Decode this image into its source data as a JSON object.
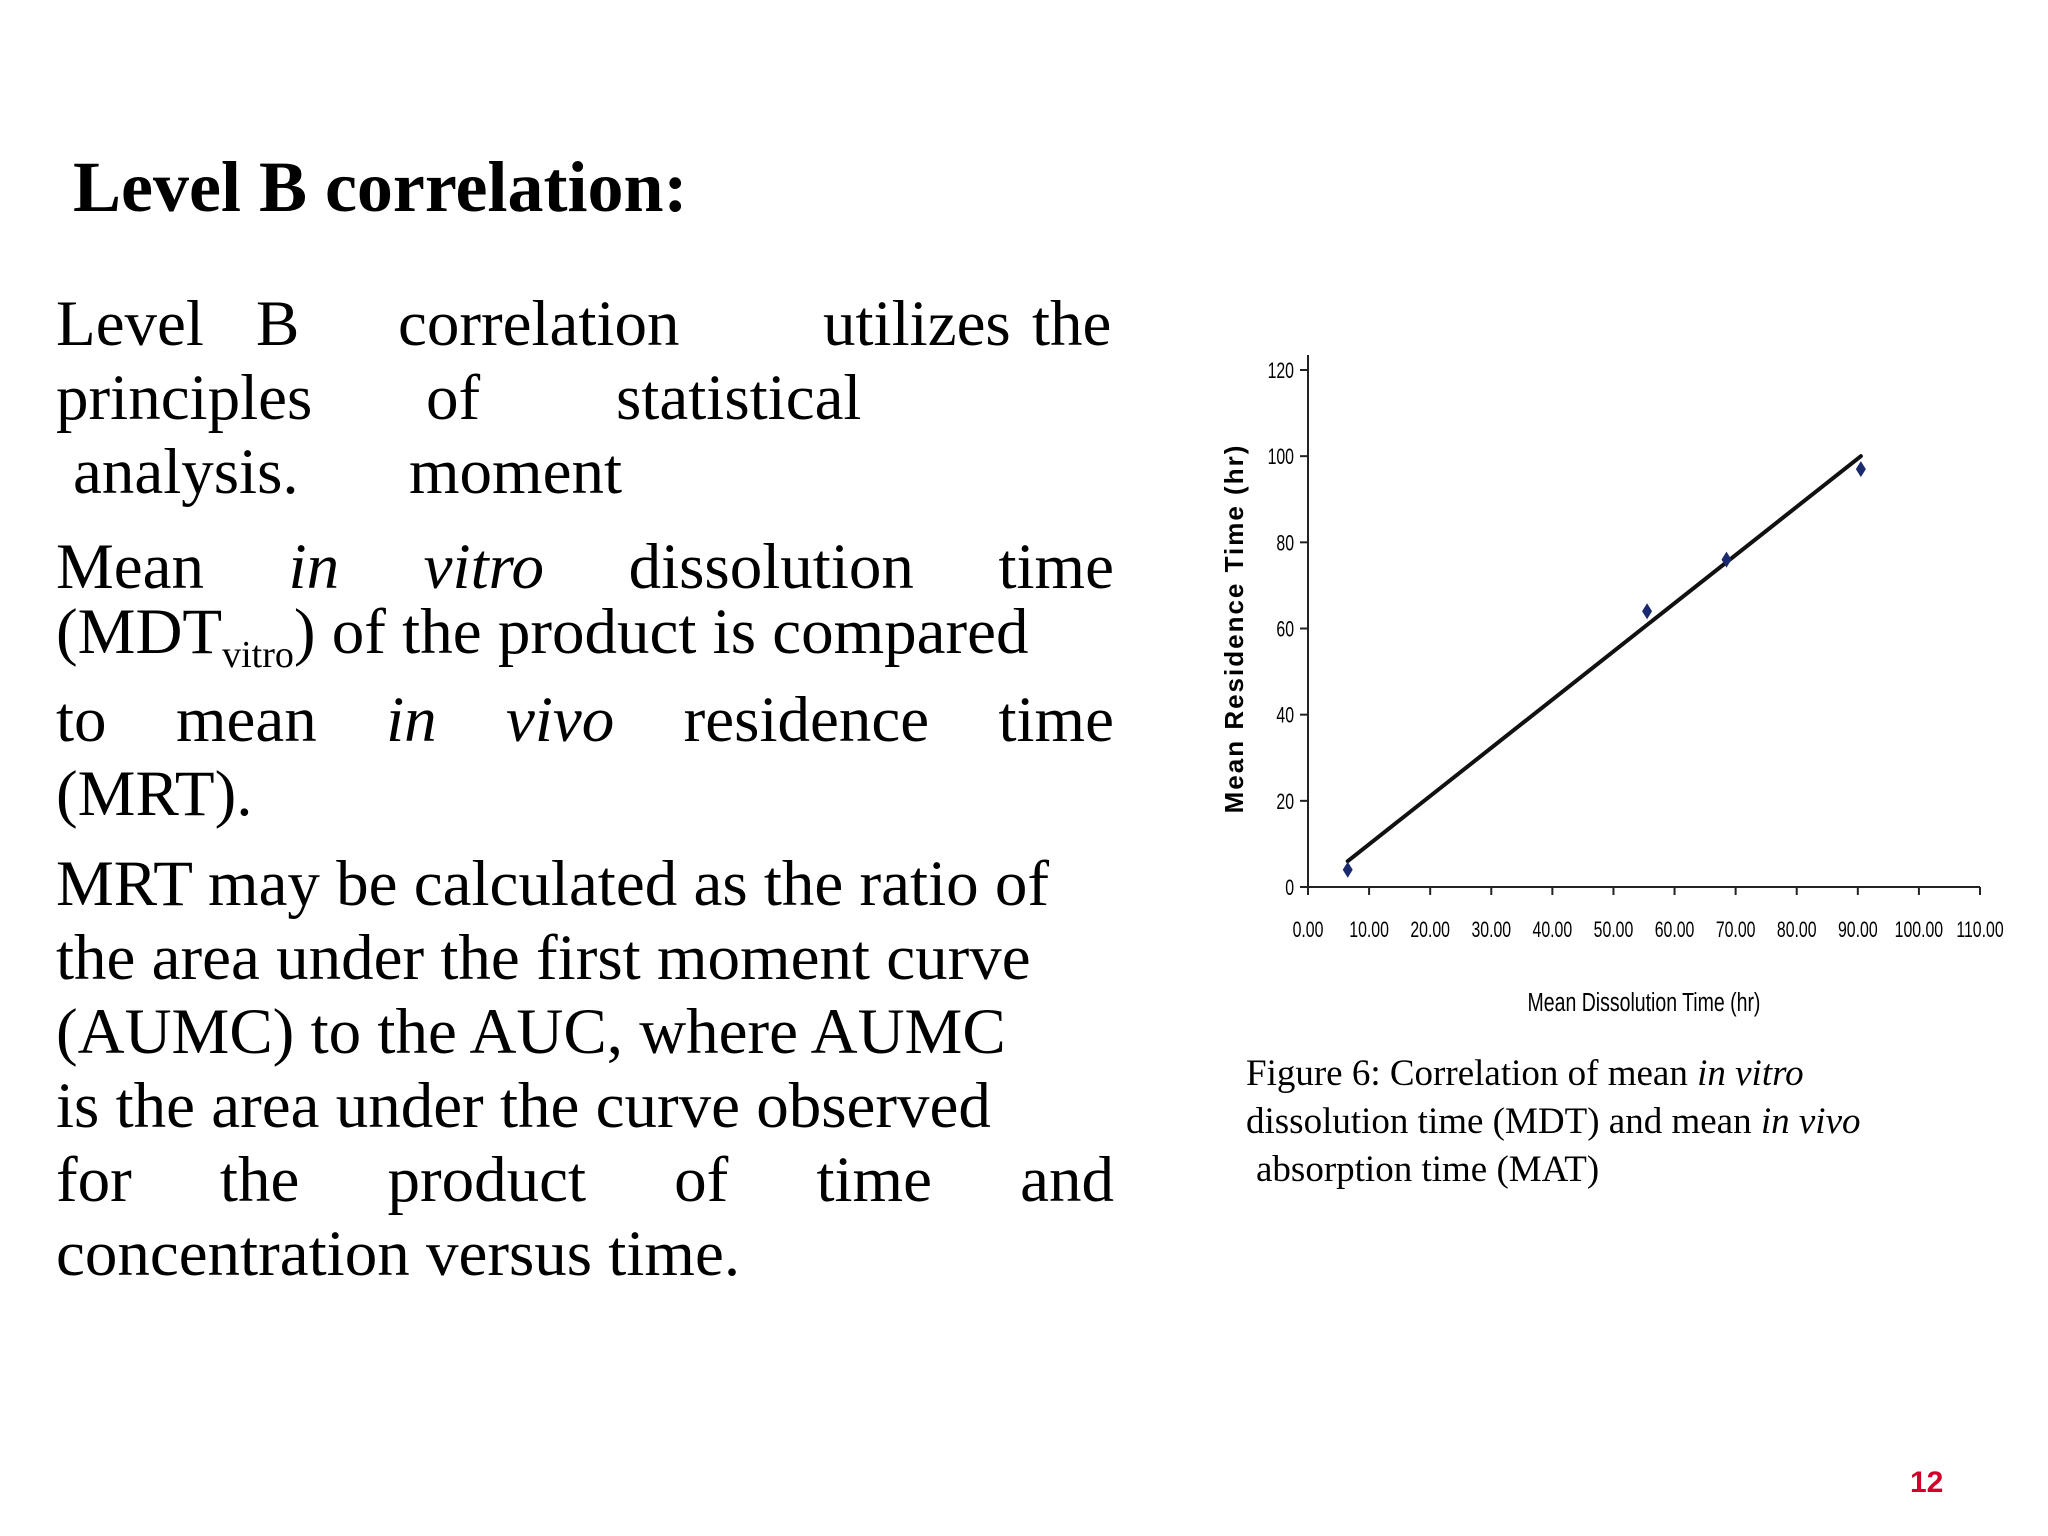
{
  "slide": {
    "title": "Level B correlation:",
    "page_number": "12"
  },
  "para1": {
    "line1": [
      "Level",
      "B",
      "correlation",
      "utilizes",
      "the"
    ],
    "line2": [
      "principles",
      "of",
      "statistical"
    ],
    "line3": [
      "analysis.",
      "moment"
    ]
  },
  "para2": {
    "line1_a": "Mean",
    "line1_b": "in",
    "line1_c": "vitro",
    "line1_d": "dissolution",
    "line1_e": "time",
    "line2_a": "(MDT",
    "line2_sub": "vitro",
    "line2_b": ") of the product is compared",
    "line3_a": "to",
    "line3_b": "mean",
    "line3_c": "in",
    "line3_d": "vivo",
    "line3_e": "residence",
    "line3_f": "time",
    "line4": "(MRT)."
  },
  "para3": {
    "line1": "MRT may be calculated as the ratio of",
    "line2": "the area under the first moment curve",
    "line3": "(AUMC) to the AUC, where AUMC",
    "line4": "is the area under the curve observed",
    "line5": [
      "for",
      "the",
      "product",
      "of",
      "time",
      "and"
    ],
    "line6": "concentration versus time."
  },
  "figure": {
    "caption_l1a": "Figure 6: Correlation of mean ",
    "caption_l1b": "in vitro",
    "caption_l2a": "dissolution time (MDT) and mean ",
    "caption_l2b": "in vivo",
    "caption_l3": "absorption time (MAT)"
  },
  "chart_data": {
    "type": "scatter",
    "xlabel": "Mean Dissolution Time (hr)",
    "ylabel": "Mean Residence Time (hr)",
    "xlim": [
      0,
      110
    ],
    "ylim": [
      0,
      120
    ],
    "x_ticks": [
      "0.00",
      "10.00",
      "20.00",
      "30.00",
      "40.00",
      "50.00",
      "60.00",
      "70.00",
      "80.00",
      "90.00",
      "100.00",
      "110.00"
    ],
    "y_ticks": [
      "0",
      "20",
      "40",
      "60",
      "80",
      "100",
      "120"
    ],
    "grid": false,
    "points": [
      {
        "x": 6.5,
        "y": 4
      },
      {
        "x": 55.5,
        "y": 64
      },
      {
        "x": 68.5,
        "y": 76
      },
      {
        "x": 90.5,
        "y": 97
      }
    ],
    "trendline": {
      "x": [
        6.5,
        90.5
      ],
      "y": [
        6,
        100
      ]
    },
    "colors": {
      "points": "#1a2a6e",
      "line": "#111111"
    }
  }
}
